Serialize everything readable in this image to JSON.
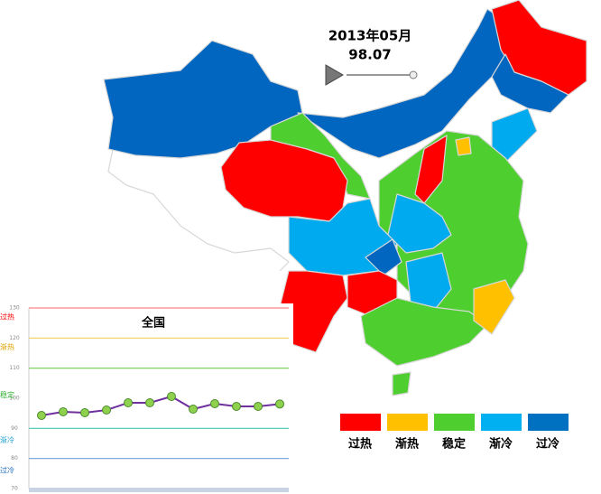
{
  "header": {
    "date": "2013年05月",
    "value": "98.07"
  },
  "legend": [
    {
      "name": "过热",
      "color": "#ff0000"
    },
    {
      "name": "渐热",
      "color": "#ffc000"
    },
    {
      "name": "稳定",
      "color": "#4fcf2f"
    },
    {
      "name": "渐冷",
      "color": "#00b0f0"
    },
    {
      "name": "过冷",
      "color": "#0070c0"
    }
  ],
  "chart_data": {
    "type": "line",
    "title": "全国",
    "categories": [
      null,
      null,
      null,
      null,
      null,
      null,
      null,
      null,
      null,
      null,
      null,
      null
    ],
    "series": [
      {
        "name": "全国",
        "color": "#7030a0",
        "values": [
          94.3,
          95.5,
          95.2,
          96.1,
          98.5,
          98.5,
          100.6,
          96.4,
          98.2,
          97.3,
          97.3,
          98.1
        ]
      }
    ],
    "marker_color": "#8fd14f",
    "ylim": [
      70,
      130
    ],
    "yticks": [
      130,
      120,
      110,
      100,
      90,
      80,
      70
    ],
    "grid_colors": [
      "#ff8080",
      "#f0d060",
      "#70cc50",
      null,
      "#40c8b0",
      "#70a0d8",
      null
    ],
    "band_labels": [
      {
        "label": "过热",
        "value": 127,
        "color": "#ff0000"
      },
      {
        "label": "渐热",
        "value": 117,
        "color": "#e0a000"
      },
      {
        "label": "稳定",
        "value": 101,
        "color": "#30b030"
      },
      {
        "label": "渐冷",
        "value": 86,
        "color": "#20a0d0"
      },
      {
        "label": "过冷",
        "value": 76,
        "color": "#2070c0"
      }
    ]
  }
}
